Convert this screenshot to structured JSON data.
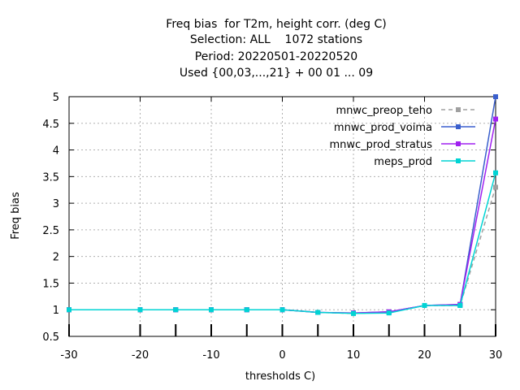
{
  "chart_data": {
    "type": "line",
    "title_lines": [
      "Freq bias  for T2m, height corr. (deg C)",
      "Selection: ALL    1072 stations",
      "Period: 20220501-20220520",
      "Used {00,03,...,21} + 00 01 ... 09"
    ],
    "xlabel": "thresholds C)",
    "ylabel": "Freq bias",
    "xlim": [
      -30,
      30
    ],
    "ylim": [
      0.5,
      5
    ],
    "x_ticks": [
      -30,
      -20,
      -10,
      0,
      10,
      20,
      30
    ],
    "y_ticks": [
      0.5,
      1,
      1.5,
      2,
      2.5,
      3,
      3.5,
      4,
      4.5,
      5
    ],
    "grid": true,
    "legend_position": "top-right",
    "x": [
      -30,
      -20,
      -15,
      -10,
      -5,
      0,
      5,
      10,
      15,
      20,
      25,
      30
    ],
    "series": [
      {
        "name": "mnwc_preop_teho",
        "color": "#a0a0a0",
        "dashed": true,
        "values": [
          1.0,
          1.0,
          1.0,
          1.0,
          1.0,
          1.0,
          0.95,
          0.93,
          0.95,
          1.08,
          1.08,
          3.3
        ]
      },
      {
        "name": "mnwc_prod_voima",
        "color": "#3a5fcd",
        "dashed": false,
        "values": [
          1.0,
          1.0,
          1.0,
          1.0,
          1.0,
          1.0,
          0.95,
          0.94,
          0.96,
          1.08,
          1.1,
          5.0
        ]
      },
      {
        "name": "mnwc_prod_stratus",
        "color": "#a020f0",
        "dashed": false,
        "values": [
          1.0,
          1.0,
          1.0,
          1.0,
          1.0,
          1.0,
          0.95,
          0.94,
          0.96,
          1.08,
          1.1,
          4.58
        ]
      },
      {
        "name": "meps_prod",
        "color": "#00d4d4",
        "dashed": false,
        "values": [
          1.0,
          1.0,
          1.0,
          1.0,
          1.0,
          1.0,
          0.95,
          0.93,
          0.94,
          1.08,
          1.08,
          3.57
        ]
      }
    ]
  }
}
